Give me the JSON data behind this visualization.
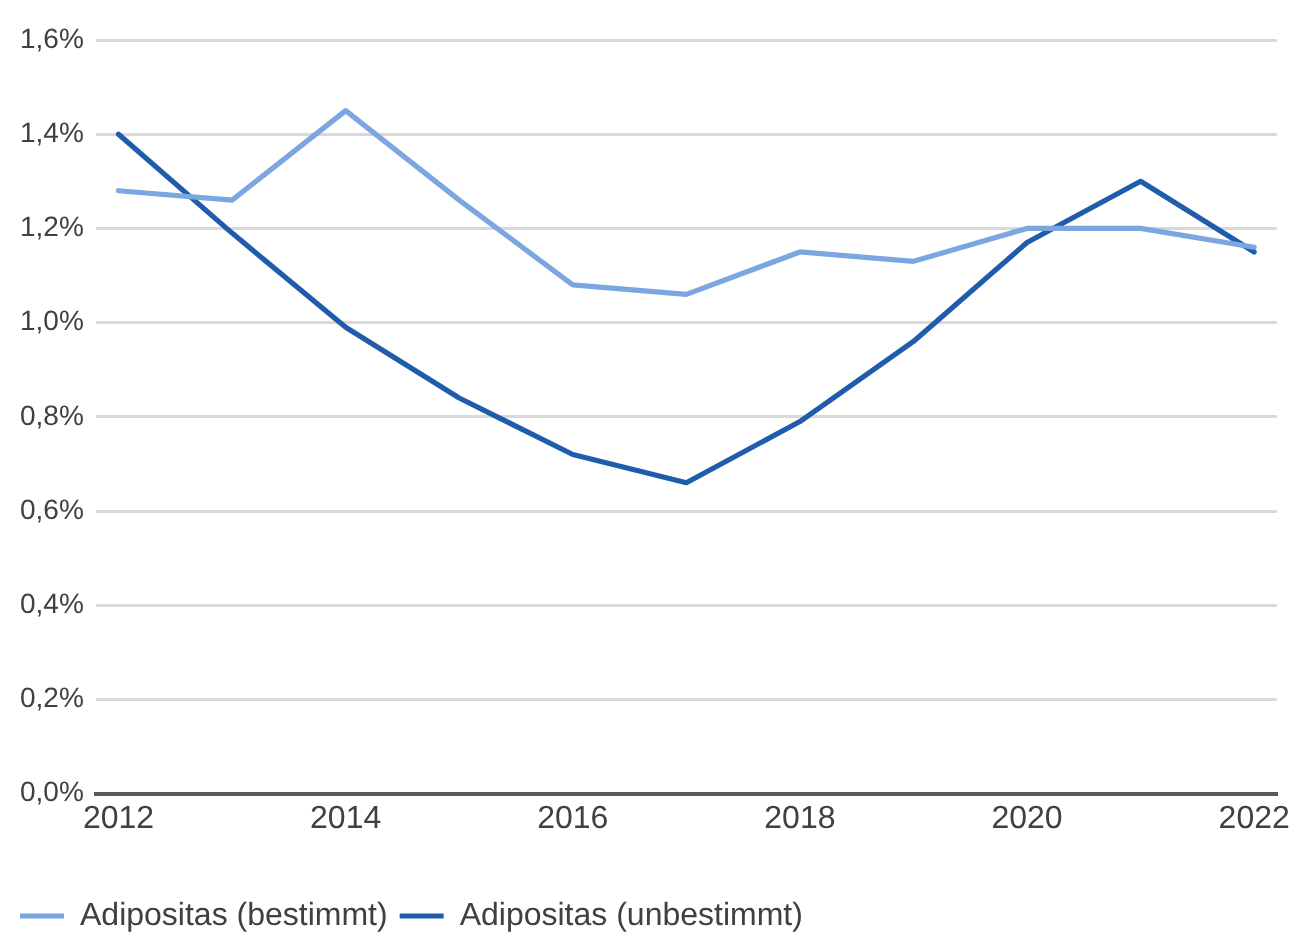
{
  "chart_data": {
    "type": "line",
    "x": [
      2012,
      2013,
      2014,
      2015,
      2016,
      2017,
      2018,
      2019,
      2020,
      2021,
      2022
    ],
    "series": [
      {
        "name": "Adipositas (bestimmt)",
        "color": "#7ba7e1",
        "values": [
          1.28,
          1.26,
          1.45,
          1.26,
          1.08,
          1.06,
          1.15,
          1.13,
          1.2,
          1.2,
          1.16
        ]
      },
      {
        "name": "Adipositas (unbestimmt)",
        "color": "#1f5cab",
        "values": [
          1.4,
          1.19,
          0.99,
          0.84,
          0.72,
          0.66,
          0.79,
          0.96,
          1.17,
          1.3,
          1.15
        ]
      }
    ],
    "xlim": [
      2011.8,
      2022.2
    ],
    "xticks": [
      2012,
      2014,
      2016,
      2018,
      2020,
      2022
    ],
    "ylim": [
      0,
      1.6
    ],
    "yticks": [
      {
        "value": 0,
        "label": "0,0%"
      },
      {
        "value": 0.2,
        "label": "0,2%"
      },
      {
        "value": 0.4,
        "label": "0,4%"
      },
      {
        "value": 0.6,
        "label": "0,6%"
      },
      {
        "value": 0.8,
        "label": "0,8%"
      },
      {
        "value": 1.0,
        "label": "1,0%"
      },
      {
        "value": 1.2,
        "label": "1,2%"
      },
      {
        "value": 1.4,
        "label": "1,4%"
      },
      {
        "value": 1.6,
        "label": "1,6%"
      }
    ],
    "grid": "y",
    "legend": "bottom left",
    "marker": "none",
    "line_style": "solid"
  }
}
